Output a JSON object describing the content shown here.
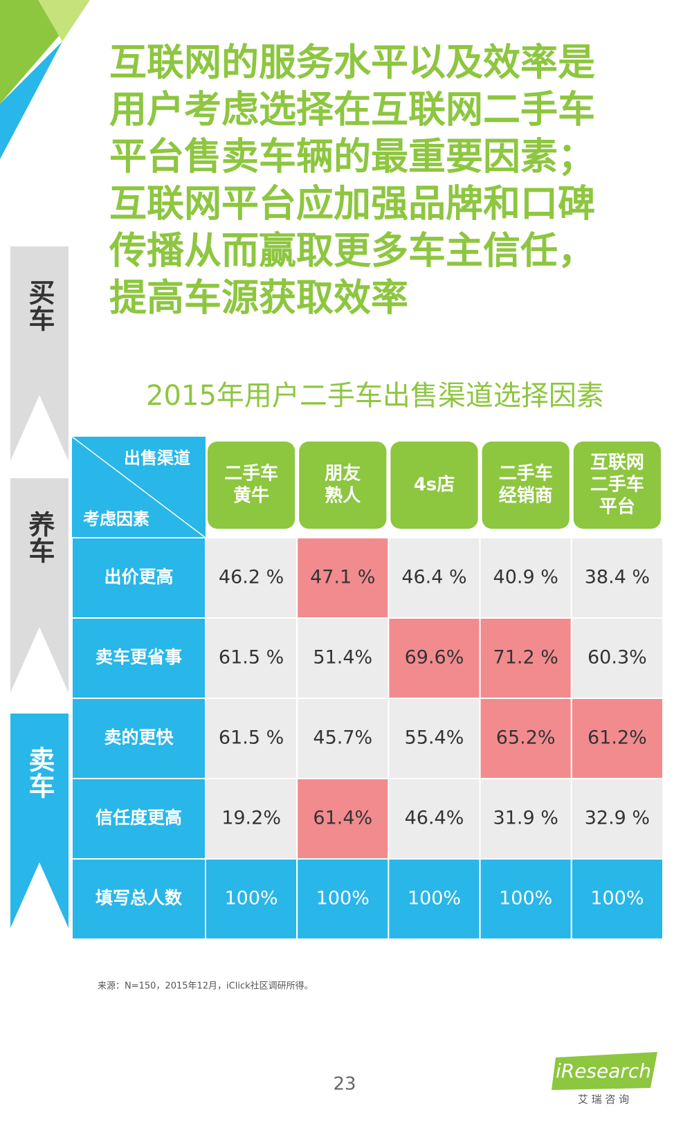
{
  "title_lines": [
    "互联网的服务水平以及效率是",
    "用户考虑选择在互联网二手车",
    "平台售卖车辆的最重要因素；",
    "互联网平台应加强品牌和口碑",
    "传播从而赢取更多车主信任，",
    "提高车源获取效率"
  ],
  "side_tabs": [
    "买车",
    "养车",
    "卖车"
  ],
  "subtitle": "2015年用户二手车出售渠道选择因素",
  "table": {
    "corner_top": "出售渠道",
    "corner_bottom": "考虑因素",
    "columns": [
      [
        "二手车",
        "黄牛"
      ],
      [
        "朋友",
        "熟人"
      ],
      [
        "4s店"
      ],
      [
        "二手车",
        "经销商"
      ],
      [
        "互联网",
        "二手车",
        "平台"
      ]
    ],
    "rows": [
      {
        "label": "出价更高",
        "cells": [
          "46.2 %",
          "47.1 %",
          "46.4 %",
          "40.9 %",
          "38.4 %"
        ],
        "highlighted": [
          1
        ]
      },
      {
        "label": "卖车更省事",
        "cells": [
          "61.5 %",
          "51.4%",
          "69.6%",
          "71.2 %",
          "60.3%"
        ],
        "highlighted": [
          2,
          3
        ]
      },
      {
        "label": "卖的更快",
        "cells": [
          "61.5 %",
          "45.7%",
          "55.4%",
          "65.2%",
          "61.2%"
        ],
        "highlighted": [
          3,
          4
        ]
      },
      {
        "label": "信任度更高",
        "cells": [
          "19.2%",
          "61.4%",
          "46.4%",
          "31.9 %",
          "32.9 %"
        ],
        "highlighted": [
          1
        ]
      }
    ],
    "total_row": {
      "label": "填写总人数",
      "cells": [
        "100%",
        "100%",
        "100%",
        "100%",
        "100%"
      ]
    }
  },
  "source": "来源：N=150，2015年12月，iClick社区调研所得。",
  "page_number": "23",
  "logo": {
    "name": "iResearch",
    "subtitle": "艾 瑞 咨 询"
  }
}
